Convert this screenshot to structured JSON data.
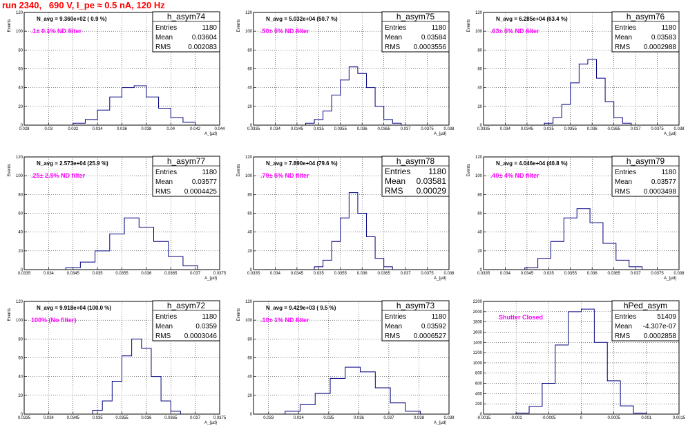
{
  "title": "run 2340,   690 V, I_pe ≈ 0.5 nA, 120 Hz",
  "chart_data": [
    {
      "type": "bar",
      "name": "h_asym74",
      "navg": "N_avg = 9.360e+02 ( 0.9 %)",
      "filter": ".1± 0.1% ND filter",
      "stats": {
        "entries": "1180",
        "mean": "0.03604",
        "rms": "0.002083"
      },
      "ylabel": "Events",
      "xlabel": "A_{μd}",
      "xlim": [
        0.028,
        0.044
      ],
      "ylim": [
        0,
        120
      ],
      "xticks": [
        "0.028",
        "0.03",
        "0.032",
        "0.034",
        "0.036",
        "0.038",
        "0.04",
        "0.042",
        "0.044"
      ],
      "yticks": [
        0,
        20,
        40,
        60,
        80,
        100,
        120
      ],
      "x": [
        0.0325,
        0.0335,
        0.0345,
        0.0355,
        0.0365,
        0.0375,
        0.0385,
        0.0395,
        0.0405,
        0.0415
      ],
      "values": [
        2,
        6,
        16,
        30,
        40,
        42,
        30,
        18,
        8,
        3
      ]
    },
    {
      "type": "bar",
      "name": "h_asym75",
      "navg": "N_avg = 5.032e+04 (50.7 %)",
      "filter": ".50± 5% ND filter",
      "stats": {
        "entries": "1180",
        "mean": "0.03584",
        "rms": "0.0003556"
      },
      "ylabel": "Events",
      "xlabel": "A_{μd}",
      "xlim": [
        0.0335,
        0.038
      ],
      "ylim": [
        0,
        120
      ],
      "xticks": [
        "0.0335",
        "0.034",
        "0.0345",
        "0.035",
        "0.0355",
        "0.036",
        "0.0365",
        "0.037",
        "0.0375",
        "0.038"
      ],
      "yticks": [
        0,
        20,
        40,
        60,
        80,
        100,
        120
      ],
      "x": [
        0.0348,
        0.035,
        0.0352,
        0.0354,
        0.0356,
        0.0358,
        0.036,
        0.0362,
        0.0364,
        0.0366,
        0.0368
      ],
      "values": [
        2,
        6,
        15,
        32,
        48,
        62,
        55,
        40,
        20,
        6,
        2
      ]
    },
    {
      "type": "bar",
      "name": "h_asym76",
      "navg": "N_avg = 6.285e+04 (63.4 %)",
      "filter": ".63± 5% ND filter",
      "stats": {
        "entries": "1180",
        "mean": "0.03583",
        "rms": "0.0002988"
      },
      "ylabel": "Events",
      "xlabel": "A_{μd}",
      "xlim": [
        0.0335,
        0.038
      ],
      "ylim": [
        0,
        120
      ],
      "xticks": [
        "0.0335",
        "0.034",
        "0.0345",
        "0.035",
        "0.0355",
        "0.036",
        "0.0365",
        "0.037",
        "0.0375",
        "0.038"
      ],
      "yticks": [
        0,
        20,
        40,
        60,
        80,
        100,
        120
      ],
      "x": [
        0.035,
        0.0352,
        0.0354,
        0.0356,
        0.0358,
        0.036,
        0.0362,
        0.0364,
        0.0366,
        0.0368
      ],
      "values": [
        2,
        8,
        22,
        45,
        65,
        70,
        50,
        25,
        8,
        2
      ]
    },
    {
      "type": "bar",
      "name": "h_asym77",
      "navg": "N_avg = 2.573e+04 (25.9 %)",
      "filter": ".25± 2.5% ND filter",
      "stats": {
        "entries": "1180",
        "mean": "0.03577",
        "rms": "0.0004425"
      },
      "ylabel": "Events",
      "xlabel": "A_{μd}",
      "xlim": [
        0.0335,
        0.0375
      ],
      "ylim": [
        0,
        120
      ],
      "xticks": [
        "0.0335",
        "0.034",
        "0.0345",
        "0.035",
        "0.0355",
        "0.036",
        "0.0365",
        "0.037",
        "0.0375"
      ],
      "yticks": [
        0,
        20,
        40,
        60,
        80,
        100,
        120
      ],
      "x": [
        0.0345,
        0.0348,
        0.0351,
        0.0354,
        0.0357,
        0.036,
        0.0363,
        0.0366,
        0.0369
      ],
      "values": [
        2,
        8,
        20,
        38,
        55,
        45,
        30,
        14,
        4
      ]
    },
    {
      "type": "bar",
      "name": "h_asym78",
      "navg": "N_avg = 7.890e+04 (79.6 %)",
      "filter": ".79± 5% ND filter",
      "stats": {
        "entries": "1180",
        "mean": "0.03581",
        "rms": "0.00029"
      },
      "ylabel": "Events",
      "xlabel": "A_{μd}",
      "xlim": [
        0.0335,
        0.038
      ],
      "ylim": [
        0,
        120
      ],
      "xticks": [
        "0.0335",
        "0.034",
        "0.0345",
        "0.035",
        "0.0355",
        "0.036",
        "0.0365",
        "0.037",
        "0.0375",
        "0.038"
      ],
      "yticks": [
        0,
        20,
        40,
        60,
        80,
        100,
        120
      ],
      "x": [
        0.035,
        0.0352,
        0.0354,
        0.0356,
        0.0358,
        0.036,
        0.0362,
        0.0364,
        0.0366
      ],
      "values": [
        3,
        10,
        30,
        55,
        82,
        60,
        35,
        12,
        3
      ]
    },
    {
      "type": "bar",
      "name": "h_asym79",
      "navg": "N_avg = 4.046e+04 (40.8 %)",
      "filter": ".40± 4% ND filter",
      "stats": {
        "entries": "1180",
        "mean": "0.03577",
        "rms": "0.0003498"
      },
      "ylabel": "Events",
      "xlabel": "A_{μd}",
      "xlim": [
        0.0335,
        0.038
      ],
      "ylim": [
        0,
        120
      ],
      "xticks": [
        "0.0335",
        "0.034",
        "0.0345",
        "0.035",
        "0.0355",
        "0.036",
        "0.0365",
        "0.037",
        "0.0375",
        "0.038"
      ],
      "yticks": [
        0,
        20,
        40,
        60,
        80,
        100,
        120
      ],
      "x": [
        0.0346,
        0.0349,
        0.0352,
        0.0355,
        0.0358,
        0.0361,
        0.0364,
        0.0367,
        0.037
      ],
      "values": [
        2,
        12,
        30,
        55,
        65,
        50,
        28,
        10,
        3
      ]
    },
    {
      "type": "bar",
      "name": "h_asym72",
      "navg": "N_avg = 9.918e+04 (100.0 %)",
      "filter": "100% (No filter)",
      "stats": {
        "entries": "1180",
        "mean": "0.0359",
        "rms": "0.0003046"
      },
      "ylabel": "Events",
      "xlabel": "A_{μd}",
      "xlim": [
        0.0335,
        0.0375
      ],
      "ylim": [
        0,
        120
      ],
      "xticks": [
        "0.0335",
        "0.034",
        "0.0345",
        "0.035",
        "0.0355",
        "0.036",
        "0.0365",
        "0.037",
        "0.0375"
      ],
      "yticks": [
        0,
        20,
        40,
        60,
        80,
        100,
        120
      ],
      "x": [
        0.035,
        0.0352,
        0.0354,
        0.0356,
        0.0358,
        0.036,
        0.0362,
        0.0364,
        0.0366
      ],
      "values": [
        4,
        14,
        35,
        62,
        80,
        70,
        40,
        14,
        3
      ]
    },
    {
      "type": "bar",
      "name": "h_asym73",
      "navg": "N_avg = 9.429e+03 ( 9.5 %)",
      "filter": ".10± 1% ND filter",
      "stats": {
        "entries": "1180",
        "mean": "0.03592",
        "rms": "0.0006527"
      },
      "ylabel": "Events",
      "xlabel": "A_{μd}",
      "xlim": [
        0.0325,
        0.039
      ],
      "ylim": [
        0,
        120
      ],
      "xticks": [
        "0.033",
        "0.034",
        "0.035",
        "0.036",
        "0.037",
        "0.038",
        "0.039"
      ],
      "yticks": [
        0,
        20,
        40,
        60,
        80,
        100,
        120
      ],
      "x": [
        0.0338,
        0.0343,
        0.0348,
        0.0353,
        0.0358,
        0.0363,
        0.0368,
        0.0373,
        0.0378
      ],
      "values": [
        3,
        10,
        22,
        38,
        50,
        45,
        28,
        12,
        3
      ]
    },
    {
      "type": "bar",
      "name": "hPed_asym",
      "navg": "",
      "filter": "Shutter Closed",
      "stats": {
        "entries": "51409",
        "mean": "-4.307e-07",
        "rms": "0.0002858"
      },
      "ylabel": "",
      "xlabel": "",
      "xlim": [
        -0.0015,
        0.0015
      ],
      "ylim": [
        0,
        2200
      ],
      "xticks": [
        "-0.0015",
        "-0.001",
        "-0.0005",
        "0",
        "0.0005",
        "0.001",
        "0.0015"
      ],
      "yticks": [
        0,
        200,
        400,
        600,
        800,
        1000,
        1200,
        1400,
        1600,
        1800,
        2000,
        2200
      ],
      "x": [
        -0.0009,
        -0.0007,
        -0.0005,
        -0.0003,
        -0.0001,
        0.0001,
        0.0003,
        0.0005,
        0.0007,
        0.0009
      ],
      "values": [
        20,
        150,
        600,
        1350,
        2000,
        2050,
        1400,
        650,
        160,
        20
      ]
    }
  ]
}
